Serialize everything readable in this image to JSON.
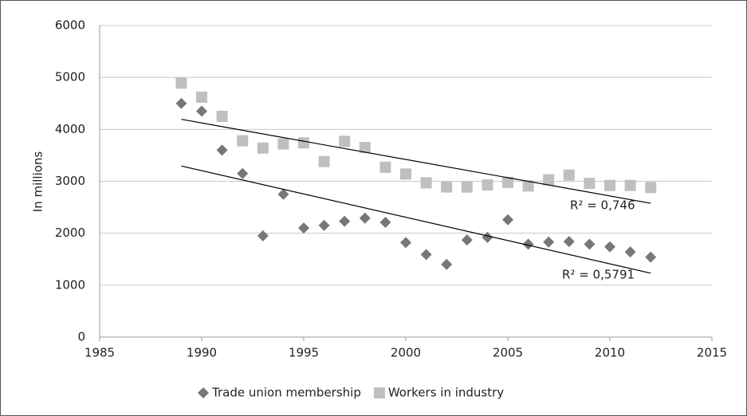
{
  "chart_data": {
    "type": "scatter",
    "y_label": "In millions",
    "xlim": [
      1985,
      2015
    ],
    "xticks": [
      1985,
      1990,
      1995,
      2000,
      2005,
      2010,
      2015
    ],
    "ylim": [
      0,
      6000
    ],
    "yticks": [
      0,
      1000,
      2000,
      3000,
      4000,
      5000,
      6000
    ],
    "grid": true,
    "legend": "bottom",
    "series": [
      {
        "name": "Trade union membership",
        "color": "#777777",
        "marker": "diamond",
        "trendline": true,
        "x": [
          1989,
          1990,
          1991,
          1992,
          1993,
          1994,
          1995,
          1996,
          1997,
          1998,
          1999,
          2000,
          2001,
          2002,
          2003,
          2004,
          2005,
          2006,
          2007,
          2008,
          2009,
          2010,
          2011,
          2012
        ],
        "values": [
          4500,
          4350,
          3600,
          3150,
          1950,
          2750,
          2100,
          2150,
          2230,
          2290,
          2210,
          1820,
          1590,
          1400,
          1870,
          1920,
          2260,
          1790,
          1830,
          1840,
          1790,
          1740,
          1640,
          1540
        ]
      },
      {
        "name": "Workers in industry",
        "color": "#bfbfbf",
        "marker": "square",
        "trendline": true,
        "x": [
          1989,
          1990,
          1991,
          1992,
          1993,
          1994,
          1995,
          1996,
          1997,
          1998,
          1999,
          2000,
          2001,
          2002,
          2003,
          2004,
          2005,
          2006,
          2007,
          2008,
          2009,
          2010,
          2011,
          2012
        ],
        "values": [
          4890,
          4620,
          4250,
          3780,
          3640,
          3720,
          3740,
          3380,
          3770,
          3650,
          3270,
          3140,
          2970,
          2890,
          2890,
          2930,
          2980,
          2910,
          3030,
          3120,
          2960,
          2920,
          2920,
          2880
        ]
      }
    ],
    "annotations": [
      "R² = 0,5791",
      "R² = 0,746"
    ]
  }
}
